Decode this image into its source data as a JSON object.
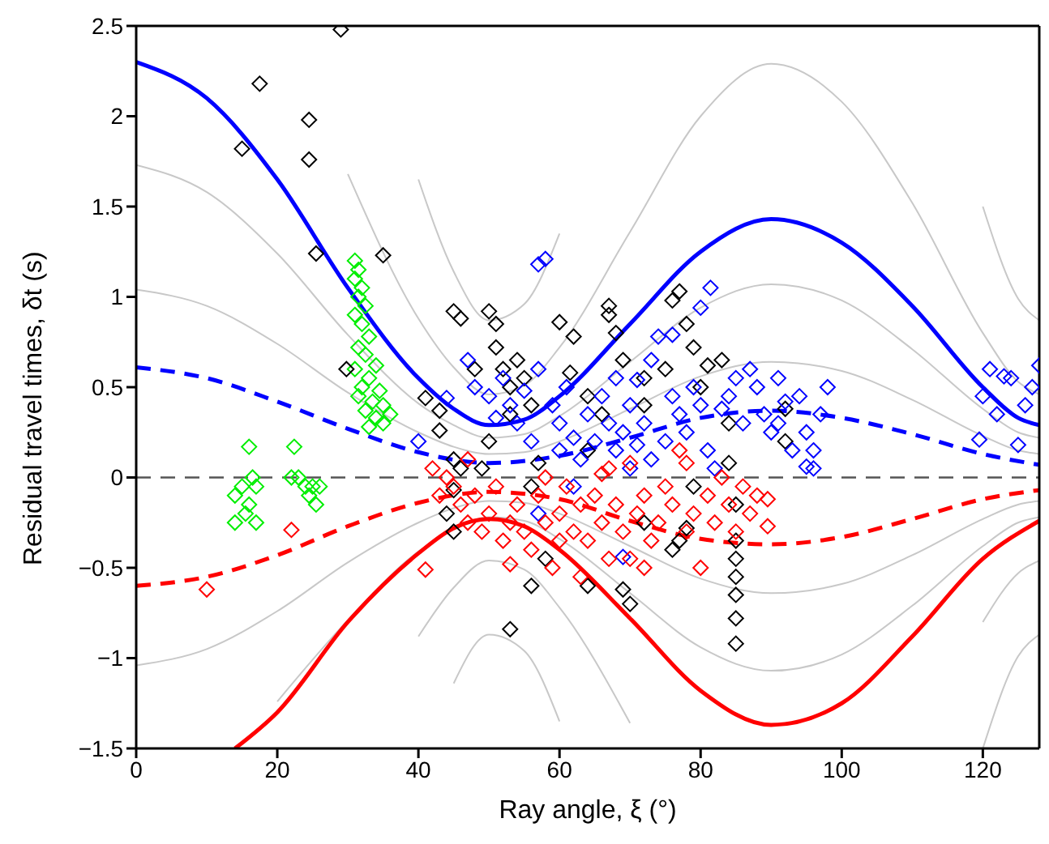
{
  "chart_data": {
    "type": "scatter",
    "xlabel": "Ray angle, ξ (°)",
    "ylabel": "Residual travel times, δt (s)",
    "xlim": [
      0,
      128
    ],
    "xticks": [
      0,
      20,
      40,
      60,
      80,
      100,
      120
    ],
    "ylim": [
      -1.5,
      2.5
    ],
    "yticks": [
      {
        "value": -1.5,
        "label": "−1.5"
      },
      {
        "value": -1,
        "label": "−1"
      },
      {
        "value": -0.5,
        "label": "−0.5"
      },
      0,
      0.5,
      1,
      1.5,
      2,
      2.5
    ],
    "grid": false,
    "legend": false,
    "marker": "diamond",
    "ref_lines": [
      {
        "axis": "y",
        "value": 0,
        "color": "#555555",
        "line_style": "dashed"
      }
    ],
    "series": [
      {
        "type": "line",
        "color": "#c8c8c8",
        "marker": "none",
        "line_style": "solid",
        "x": [
          0,
          10,
          20,
          30,
          40,
          45,
          50,
          55,
          60,
          70,
          80,
          90,
          100,
          110,
          120,
          125,
          128
        ],
        "values": [
          1.04,
          0.95,
          0.74,
          0.47,
          0.25,
          0.17,
          0.13,
          0.14,
          0.2,
          0.38,
          0.56,
          0.64,
          0.59,
          0.43,
          0.23,
          0.15,
          0.13
        ]
      },
      {
        "type": "line",
        "color": "#c8c8c8",
        "marker": "none",
        "line_style": "solid",
        "x": [
          0,
          10,
          20,
          30,
          40,
          45,
          50,
          55,
          60,
          70,
          80,
          90,
          100,
          110,
          120,
          125,
          128
        ],
        "values": [
          1.73,
          1.58,
          1.24,
          0.79,
          0.41,
          0.29,
          0.22,
          0.24,
          0.34,
          0.64,
          0.94,
          1.07,
          0.98,
          0.71,
          0.38,
          0.25,
          0.22
        ]
      },
      {
        "type": "line",
        "color": "#c8c8c8",
        "marker": "none",
        "line_style": "solid",
        "x": [
          30,
          40,
          45,
          50,
          55,
          60,
          70,
          80,
          90,
          100,
          110,
          120,
          125,
          128
        ],
        "values": [
          1.68,
          0.88,
          0.61,
          0.46,
          0.51,
          0.72,
          1.36,
          2.0,
          2.29,
          2.08,
          1.52,
          0.8,
          0.53,
          0.46
        ]
      },
      {
        "type": "line",
        "color": "#c8c8c8",
        "marker": "none",
        "line_style": "solid",
        "x": [
          40,
          45,
          50,
          55,
          60
        ],
        "values": [
          1.65,
          1.14,
          0.87,
          0.96,
          1.35
        ]
      },
      {
        "type": "line",
        "color": "#c8c8c8",
        "marker": "none",
        "line_style": "solid",
        "x": [
          120,
          125,
          128
        ],
        "values": [
          1.5,
          0.99,
          0.87
        ]
      },
      {
        "type": "line",
        "color": "#c8c8c8",
        "marker": "none",
        "line_style": "solid",
        "x": [
          0,
          10,
          20,
          30,
          40,
          45,
          50,
          55,
          60,
          70,
          80,
          90,
          100,
          110,
          120,
          125,
          128
        ],
        "values": [
          -1.04,
          -0.95,
          -0.74,
          -0.47,
          -0.25,
          -0.17,
          -0.13,
          -0.14,
          -0.2,
          -0.38,
          -0.56,
          -0.64,
          -0.59,
          -0.43,
          -0.23,
          -0.15,
          -0.13
        ]
      },
      {
        "type": "line",
        "color": "#c8c8c8",
        "marker": "none",
        "line_style": "solid",
        "x": [
          20,
          30,
          40,
          45,
          50,
          55,
          60,
          70,
          80,
          90,
          100,
          110,
          120,
          125,
          128
        ],
        "values": [
          -1.24,
          -0.79,
          -0.41,
          -0.29,
          -0.22,
          -0.24,
          -0.34,
          -0.64,
          -0.94,
          -1.07,
          -0.98,
          -0.71,
          -0.38,
          -0.25,
          -0.22
        ]
      },
      {
        "type": "line",
        "color": "#c8c8c8",
        "marker": "none",
        "line_style": "solid",
        "x": [
          40,
          45,
          50,
          55,
          60,
          70
        ],
        "values": [
          -0.88,
          -0.61,
          -0.46,
          -0.51,
          -0.72,
          -1.36
        ]
      },
      {
        "type": "line",
        "color": "#c8c8c8",
        "marker": "none",
        "line_style": "solid",
        "x": [
          120,
          125,
          128
        ],
        "values": [
          -0.8,
          -0.53,
          -0.46
        ]
      },
      {
        "type": "line",
        "color": "#c8c8c8",
        "marker": "none",
        "line_style": "solid",
        "x": [
          45,
          50,
          55,
          60
        ],
        "values": [
          -1.14,
          -0.87,
          -0.96,
          -1.35
        ]
      },
      {
        "type": "line",
        "color": "#c8c8c8",
        "marker": "none",
        "line_style": "solid",
        "x": [
          120,
          125,
          128
        ],
        "values": [
          -1.5,
          -0.99,
          -0.87
        ]
      },
      {
        "type": "line",
        "color": "#0000ff",
        "marker": "none",
        "line_style": "solid",
        "x": [
          0,
          10,
          20,
          30,
          40,
          45,
          50,
          55,
          60,
          70,
          80,
          90,
          100,
          110,
          120,
          125,
          128
        ],
        "values": [
          2.3,
          2.1,
          1.65,
          1.05,
          0.55,
          0.38,
          0.29,
          0.32,
          0.45,
          0.85,
          1.25,
          1.43,
          1.3,
          0.95,
          0.5,
          0.33,
          0.29
        ]
      },
      {
        "type": "line",
        "color": "#0000ff",
        "marker": "none",
        "line_style": "dashed",
        "x": [
          0,
          10,
          20,
          30,
          40,
          50,
          60,
          70,
          80,
          90,
          100,
          110,
          120,
          128
        ],
        "values": [
          0.61,
          0.55,
          0.42,
          0.27,
          0.14,
          0.08,
          0.12,
          0.22,
          0.33,
          0.37,
          0.33,
          0.24,
          0.13,
          0.07
        ]
      },
      {
        "type": "line",
        "color": "#ff0000",
        "marker": "none",
        "line_style": "solid",
        "x": [
          14,
          20,
          30,
          40,
          45,
          50,
          55,
          60,
          70,
          80,
          90,
          100,
          110,
          120,
          128
        ],
        "values": [
          -1.5,
          -1.3,
          -0.8,
          -0.42,
          -0.28,
          -0.23,
          -0.27,
          -0.4,
          -0.78,
          -1.18,
          -1.37,
          -1.25,
          -0.88,
          -0.45,
          -0.24
        ]
      },
      {
        "type": "line",
        "color": "#ff0000",
        "marker": "none",
        "line_style": "dashed",
        "x": [
          0,
          10,
          20,
          30,
          40,
          50,
          60,
          70,
          80,
          90,
          100,
          110,
          120,
          128
        ],
        "values": [
          -0.6,
          -0.55,
          -0.43,
          -0.27,
          -0.14,
          -0.08,
          -0.12,
          -0.24,
          -0.34,
          -0.37,
          -0.33,
          -0.23,
          -0.12,
          -0.07
        ]
      },
      {
        "color": "#00ee00",
        "x": [
          31,
          31.5,
          31,
          32,
          31.5,
          32.5,
          31,
          32,
          33,
          31.5,
          32.5,
          34,
          31,
          33,
          32,
          34.5,
          31.5,
          33.5,
          35,
          32.5,
          34,
          33,
          35,
          36,
          15,
          14,
          16,
          17,
          16.5,
          15.5,
          17,
          14,
          16,
          22.4,
          23,
          24,
          25,
          26,
          24.5,
          25.5,
          22
        ],
        "values": [
          1.2,
          1.15,
          1.1,
          1.05,
          1.0,
          0.95,
          0.9,
          0.85,
          0.78,
          0.72,
          0.68,
          0.62,
          0.6,
          0.55,
          0.5,
          0.48,
          0.45,
          0.42,
          0.4,
          0.37,
          0.33,
          0.28,
          0.3,
          0.35,
          -0.05,
          -0.1,
          -0.15,
          -0.05,
          0.0,
          -0.2,
          -0.25,
          -0.25,
          0.17,
          0.17,
          0.0,
          -0.05,
          -0.05,
          -0.05,
          -0.1,
          -0.15,
          0.0
        ]
      },
      {
        "color": "#000000",
        "x": [
          29,
          17.5,
          24.5,
          15,
          24.5,
          25.5,
          35,
          29.8,
          41,
          43,
          43,
          45,
          46,
          45,
          46,
          48,
          50,
          51,
          51,
          52,
          53,
          54,
          55,
          56,
          53,
          50,
          57,
          49,
          60,
          62,
          64,
          61.5,
          67,
          67,
          68,
          69,
          66,
          72,
          72,
          75,
          76,
          77,
          78,
          79,
          80,
          84,
          84,
          85,
          85,
          85,
          85,
          85,
          85,
          85,
          70,
          69,
          64,
          58,
          56,
          56,
          53,
          44,
          45,
          77,
          78,
          79,
          92,
          92,
          72,
          76,
          83,
          81,
          45,
          64
        ],
        "values": [
          2.48,
          2.18,
          1.98,
          1.82,
          1.76,
          1.24,
          1.23,
          0.6,
          0.44,
          0.37,
          0.26,
          0.1,
          0.05,
          0.92,
          0.88,
          0.6,
          0.92,
          0.85,
          0.72,
          0.6,
          0.5,
          0.65,
          0.55,
          0.4,
          0.35,
          0.2,
          0.08,
          0.05,
          0.86,
          0.78,
          0.45,
          0.58,
          0.9,
          0.95,
          0.8,
          0.65,
          0.35,
          0.55,
          0.4,
          0.6,
          0.98,
          1.03,
          0.85,
          0.72,
          0.5,
          0.3,
          0.08,
          -0.15,
          -0.35,
          -0.45,
          -0.55,
          -0.65,
          -0.78,
          -0.92,
          -0.7,
          -0.62,
          -0.6,
          -0.45,
          -0.05,
          -0.6,
          -0.84,
          -0.2,
          -0.3,
          -0.35,
          -0.28,
          -0.05,
          0.38,
          0.2,
          -0.25,
          -0.4,
          0.65,
          0.62,
          -0.07,
          0.15
        ]
      },
      {
        "color": "#0000ff",
        "x": [
          40,
          44,
          47,
          48,
          50,
          51,
          52,
          53,
          54,
          55,
          56,
          57,
          57,
          58,
          59,
          60,
          60,
          61,
          62,
          63,
          64,
          65,
          66,
          67,
          68,
          68,
          69,
          70,
          70,
          71,
          72,
          73,
          73,
          74,
          75,
          76,
          77,
          78,
          79,
          80,
          81,
          82,
          83,
          84,
          85,
          86,
          87,
          88,
          89,
          90,
          91,
          91,
          92,
          93,
          94,
          95,
          96,
          97,
          98,
          96,
          62,
          57,
          69,
          81.4,
          80,
          76,
          71,
          95,
          119.5,
          120,
          121,
          122,
          123,
          124,
          125,
          126,
          127,
          128
        ],
        "values": [
          0.2,
          0.44,
          0.65,
          0.5,
          0.45,
          0.33,
          0.55,
          0.4,
          0.3,
          0.48,
          0.2,
          0.6,
          1.18,
          1.21,
          0.4,
          0.15,
          0.3,
          0.5,
          0.22,
          0.1,
          0.35,
          0.2,
          0.45,
          0.3,
          0.15,
          0.55,
          0.25,
          0.05,
          0.4,
          0.18,
          0.3,
          0.1,
          0.65,
          0.78,
          0.2,
          0.45,
          0.35,
          0.25,
          0.5,
          0.4,
          0.15,
          0.05,
          0.38,
          0.45,
          0.55,
          0.3,
          0.6,
          0.5,
          0.35,
          0.25,
          0.55,
          0.3,
          0.42,
          0.15,
          0.45,
          0.25,
          0.15,
          0.35,
          0.5,
          0.05,
          -0.05,
          -0.2,
          -0.44,
          1.05,
          0.94,
          0.79,
          0.54,
          0.06,
          0.21,
          0.45,
          0.6,
          0.35,
          0.56,
          0.55,
          0.18,
          0.4,
          0.5,
          0.62
        ]
      },
      {
        "color": "#ff0000",
        "x": [
          10,
          22,
          41,
          42,
          43,
          44,
          45,
          46,
          47,
          48,
          49,
          50,
          51,
          52,
          53,
          54,
          55,
          56,
          57,
          58,
          59,
          60,
          61,
          62,
          63,
          64,
          65,
          66,
          67,
          68,
          69,
          70,
          71,
          72,
          73,
          74,
          75,
          76,
          77,
          78,
          78,
          79,
          80,
          81,
          82,
          83,
          84,
          85,
          86,
          87,
          88,
          89.5,
          89.5,
          70,
          67,
          63,
          58,
          47,
          53,
          60,
          72,
          66
        ],
        "values": [
          -0.62,
          -0.29,
          -0.51,
          0.05,
          -0.1,
          0.0,
          -0.05,
          -0.15,
          -0.25,
          -0.1,
          -0.3,
          -0.2,
          -0.05,
          -0.35,
          -0.25,
          -0.15,
          -0.3,
          -0.4,
          -0.1,
          -0.25,
          -0.5,
          -0.2,
          -0.05,
          -0.3,
          -0.15,
          -0.35,
          -0.1,
          -0.25,
          0.05,
          -0.15,
          -0.3,
          -0.45,
          -0.2,
          -0.1,
          -0.35,
          -0.25,
          -0.05,
          -0.15,
          0.15,
          0.08,
          -0.3,
          -0.2,
          -0.5,
          -0.1,
          -0.25,
          0.0,
          -0.15,
          -0.3,
          -0.05,
          -0.2,
          -0.1,
          -0.12,
          -0.27,
          0.08,
          -0.45,
          -0.55,
          0.0,
          0.1,
          -0.48,
          -0.35,
          -0.5,
          0.02
        ]
      }
    ]
  }
}
